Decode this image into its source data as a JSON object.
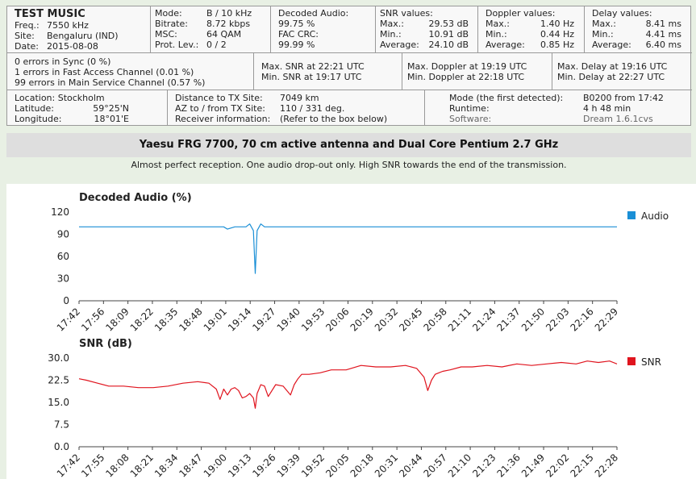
{
  "station": {
    "name": "TEST MUSIC",
    "freq_label": "Freq.:",
    "freq": "7550 kHz",
    "site_label": "Site:",
    "site": "Bengaluru (IND)",
    "date_label": "Date:",
    "date": "2015-08-08"
  },
  "mode": {
    "mode_label": "Mode:",
    "mode": "B / 10 kHz",
    "bitrate_label": "Bitrate:",
    "bitrate": "8.72 kbps",
    "msc_label": "MSC:",
    "msc": "64 QAM",
    "prot_label": "Prot. Lev.:",
    "prot": "0 / 2"
  },
  "decoded": {
    "title": "Decoded Audio:",
    "audio": "99.75 %",
    "fac_label": "FAC CRC:",
    "fac": "99.99 %"
  },
  "snr": {
    "title": "SNR values:",
    "max_label": "Max.:",
    "max": "29.53 dB",
    "min_label": "Min.:",
    "min": "10.91 dB",
    "avg_label": "Average:",
    "avg": "24.10 dB"
  },
  "doppler": {
    "title": "Doppler values:",
    "max_label": "Max.:",
    "max": "1.40 Hz",
    "min_label": "Min.:",
    "min": "0.44 Hz",
    "avg_label": "Average:",
    "avg": "0.85 Hz"
  },
  "delay": {
    "title": "Delay values:",
    "max_label": "Max.:",
    "max": "8.41 ms",
    "min_label": "Min.:",
    "min": "4.41 ms",
    "avg_label": "Average:",
    "avg": "6.40 ms"
  },
  "errors": {
    "sync": "0 errors in Sync (0 %)",
    "fac": "1 errors in Fast Access Channel (0.01 %)",
    "msc": "99 errors in Main Service Channel (0.57 %)"
  },
  "snr_times": {
    "max": "Max. SNR at 22:21 UTC",
    "min": "Min. SNR at 19:17 UTC"
  },
  "doppler_times": {
    "max": "Max. Doppler at 19:19 UTC",
    "min": "Min. Doppler at 22:18 UTC"
  },
  "delay_times": {
    "max": "Max. Delay at 19:16 UTC",
    "min": "Min. Delay at 22:27 UTC"
  },
  "location": {
    "location": "Location: Stockholm",
    "lat_label": "Latitude:",
    "lat": "59°25'N",
    "lon_label": "Longitude:",
    "lon": "18°01'E"
  },
  "tx": {
    "dist_label": "Distance to TX Site:",
    "dist": "7049 km",
    "az_label": "AZ to / from TX Site:",
    "az": "110 / 331 deg.",
    "rx_label": "Receiver information:",
    "rx": "(Refer to the box below)"
  },
  "run": {
    "mode_label": "Mode (the first detected):",
    "mode": "B0200 from 17:42",
    "runtime_label": "Runtime:",
    "runtime": "4 h 48 min",
    "software_label": "Software:",
    "software": "Dream 1.6.1cvs"
  },
  "banner": "Yaesu FRG 7700, 70 cm active antenna and Dual Core Pentium 2.7 GHz",
  "comment": "Almost perfect reception. One audio drop-out only. High SNR towards the end of the transmission.",
  "chart_data": [
    {
      "type": "line",
      "title": "Decoded Audio (%)",
      "legend": "Audio",
      "color": "#1a8fd6",
      "ylim": [
        0,
        120
      ],
      "yticks": [
        0,
        30,
        60,
        90,
        120
      ],
      "xlim": [
        0,
        290
      ],
      "xtick_labels": [
        "17:42",
        "17:56",
        "18:09",
        "18:22",
        "18:35",
        "18:48",
        "19:01",
        "19:14",
        "19:27",
        "19:40",
        "19:53",
        "20:06",
        "20:19",
        "20:32",
        "20:45",
        "20:58",
        "21:11",
        "21:24",
        "21:37",
        "21:50",
        "22:03",
        "22:16",
        "22:29"
      ],
      "x": [
        0,
        72,
        78,
        80,
        84,
        90,
        92,
        94,
        95,
        96,
        98,
        100,
        290
      ],
      "y": [
        100,
        100,
        100,
        97,
        100,
        100,
        104,
        95,
        37,
        95,
        104,
        100,
        100
      ]
    },
    {
      "type": "line",
      "title": "SNR (dB)",
      "legend": "SNR",
      "color": "#e0141e",
      "ylim": [
        0,
        30
      ],
      "yticks": [
        "0.0",
        "7.5",
        "15.0",
        "22.5",
        "30.0"
      ],
      "xlim": [
        0,
        290
      ],
      "xtick_labels": [
        "17:42",
        "17:55",
        "18:08",
        "18:21",
        "18:34",
        "18:47",
        "19:00",
        "19:13",
        "19:26",
        "19:39",
        "19:52",
        "20:05",
        "20:18",
        "20:31",
        "20:44",
        "20:57",
        "21:10",
        "21:23",
        "21:36",
        "21:49",
        "22:02",
        "22:15",
        "22:28"
      ],
      "x": [
        0,
        4,
        10,
        16,
        24,
        32,
        40,
        48,
        56,
        64,
        70,
        74,
        76,
        78,
        80,
        82,
        84,
        86,
        88,
        90,
        92,
        94,
        95,
        96,
        98,
        100,
        102,
        106,
        110,
        114,
        116,
        118,
        120,
        124,
        130,
        136,
        144,
        152,
        160,
        168,
        176,
        182,
        186,
        188,
        190,
        192,
        194,
        196,
        200,
        206,
        212,
        220,
        228,
        236,
        244,
        252,
        260,
        268,
        274,
        280,
        286,
        290
      ],
      "y": [
        23.0,
        22.5,
        21.5,
        20.5,
        20.5,
        20.0,
        20.0,
        20.5,
        21.5,
        22.0,
        21.5,
        19.5,
        16.0,
        19.5,
        17.5,
        19.5,
        20.0,
        19.0,
        16.5,
        17.0,
        18.0,
        16.5,
        13.0,
        18.0,
        21.0,
        20.5,
        17.0,
        21.0,
        20.5,
        17.5,
        21.0,
        23.0,
        24.5,
        24.5,
        25.0,
        26.0,
        26.0,
        27.5,
        27.0,
        27.0,
        27.5,
        26.5,
        23.5,
        19.0,
        22.5,
        24.5,
        25.0,
        25.5,
        26.0,
        27.0,
        27.0,
        27.5,
        27.0,
        28.0,
        27.5,
        28.0,
        28.5,
        28.0,
        29.0,
        28.5,
        29.0,
        28.0
      ]
    }
  ]
}
